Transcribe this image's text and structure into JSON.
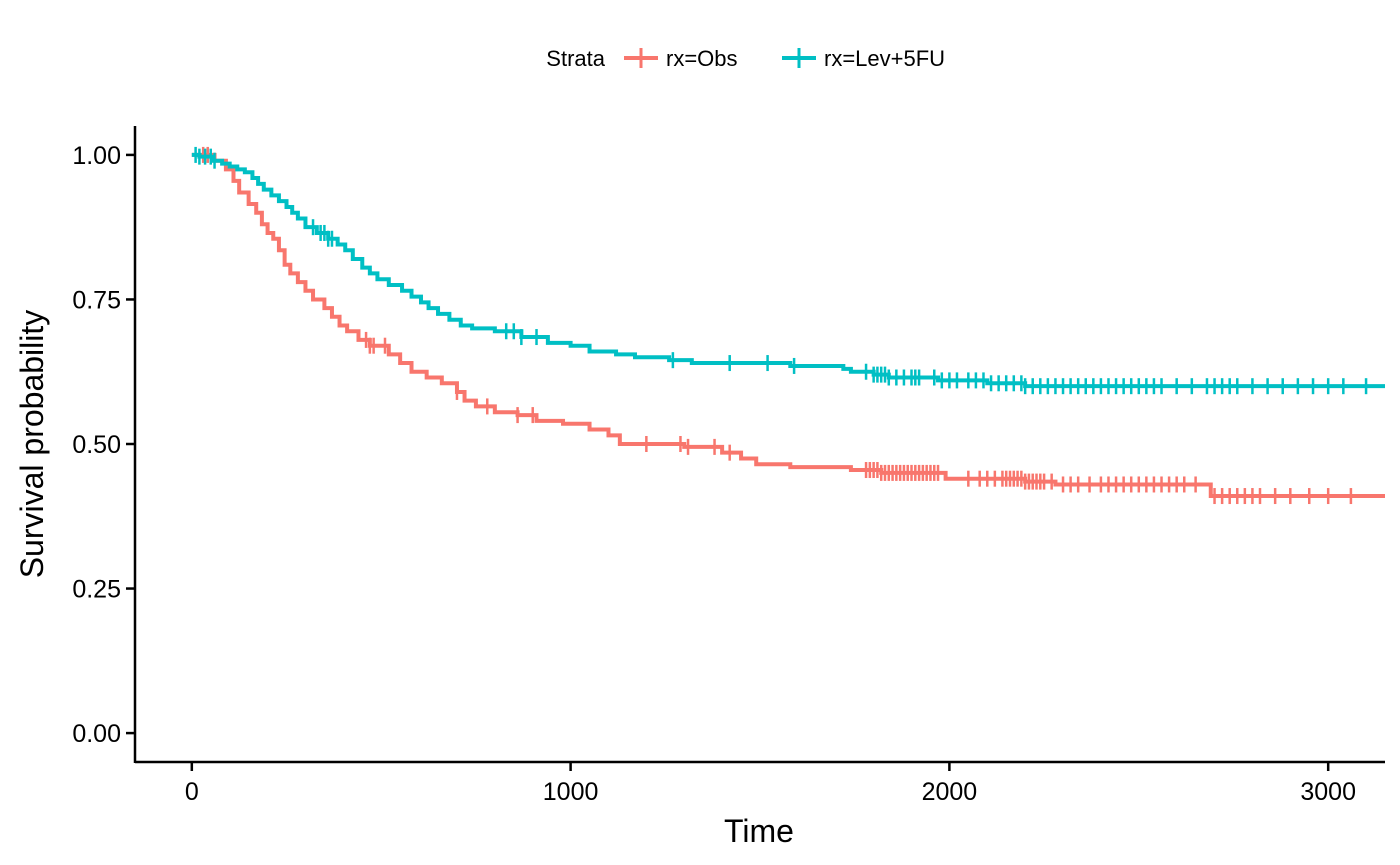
{
  "chart_data": {
    "type": "line",
    "subtype": "kaplan-meier step",
    "xlabel": "Time",
    "ylabel": "Survival probability",
    "xlim": [
      -150,
      3150
    ],
    "ylim": [
      -0.05,
      1.05
    ],
    "x_ticks": [
      0,
      1000,
      2000,
      3000
    ],
    "x_tick_labels": [
      "0",
      "1000",
      "2000",
      "3000"
    ],
    "y_ticks": [
      0,
      0.25,
      0.5,
      0.75,
      1.0
    ],
    "y_tick_labels": [
      "0.00",
      "0.25",
      "0.50",
      "0.75",
      "1.00"
    ],
    "grid": false,
    "legend": {
      "title": "Strata",
      "position": "top"
    },
    "series": [
      {
        "name": "rx=Obs",
        "color": "#f8766d",
        "steps": [
          [
            0,
            1.0
          ],
          [
            60,
            0.99
          ],
          [
            90,
            0.975
          ],
          [
            110,
            0.955
          ],
          [
            125,
            0.935
          ],
          [
            150,
            0.915
          ],
          [
            170,
            0.9
          ],
          [
            185,
            0.88
          ],
          [
            200,
            0.865
          ],
          [
            215,
            0.855
          ],
          [
            230,
            0.835
          ],
          [
            245,
            0.81
          ],
          [
            260,
            0.795
          ],
          [
            280,
            0.78
          ],
          [
            300,
            0.765
          ],
          [
            320,
            0.75
          ],
          [
            350,
            0.735
          ],
          [
            370,
            0.72
          ],
          [
            390,
            0.705
          ],
          [
            410,
            0.695
          ],
          [
            440,
            0.68
          ],
          [
            470,
            0.67
          ],
          [
            520,
            0.655
          ],
          [
            550,
            0.64
          ],
          [
            580,
            0.625
          ],
          [
            620,
            0.615
          ],
          [
            660,
            0.605
          ],
          [
            700,
            0.59
          ],
          [
            720,
            0.575
          ],
          [
            750,
            0.565
          ],
          [
            800,
            0.555
          ],
          [
            860,
            0.55
          ],
          [
            910,
            0.54
          ],
          [
            980,
            0.535
          ],
          [
            1050,
            0.525
          ],
          [
            1100,
            0.515
          ],
          [
            1130,
            0.5
          ],
          [
            1300,
            0.495
          ],
          [
            1400,
            0.485
          ],
          [
            1450,
            0.475
          ],
          [
            1490,
            0.465
          ],
          [
            1580,
            0.46
          ],
          [
            1740,
            0.455
          ],
          [
            1820,
            0.45
          ],
          [
            1990,
            0.44
          ],
          [
            2200,
            0.435
          ],
          [
            2280,
            0.43
          ],
          [
            2690,
            0.41
          ],
          [
            3150,
            0.41
          ]
        ],
        "censored": [
          30,
          42,
          460,
          470,
          480,
          510,
          700,
          780,
          860,
          900,
          1200,
          1290,
          1310,
          1380,
          1420,
          1780,
          1790,
          1800,
          1810,
          1820,
          1830,
          1840,
          1850,
          1860,
          1870,
          1880,
          1890,
          1900,
          1910,
          1920,
          1930,
          1940,
          1950,
          1960,
          1970,
          2050,
          2080,
          2100,
          2120,
          2140,
          2150,
          2160,
          2170,
          2180,
          2190,
          2200,
          2210,
          2220,
          2230,
          2240,
          2250,
          2270,
          2300,
          2320,
          2340,
          2370,
          2400,
          2420,
          2440,
          2460,
          2480,
          2500,
          2520,
          2540,
          2560,
          2580,
          2600,
          2620,
          2650,
          2700,
          2720,
          2740,
          2760,
          2780,
          2800,
          2820,
          2860,
          2900,
          2950,
          3000,
          3060
        ]
      },
      {
        "name": "rx=Lev+5FU",
        "color": "#00bfc4",
        "steps": [
          [
            0,
            1.0
          ],
          [
            20,
            0.997
          ],
          [
            55,
            0.99
          ],
          [
            80,
            0.985
          ],
          [
            100,
            0.98
          ],
          [
            120,
            0.975
          ],
          [
            140,
            0.97
          ],
          [
            160,
            0.96
          ],
          [
            175,
            0.95
          ],
          [
            190,
            0.94
          ],
          [
            210,
            0.93
          ],
          [
            230,
            0.92
          ],
          [
            250,
            0.91
          ],
          [
            265,
            0.9
          ],
          [
            280,
            0.89
          ],
          [
            300,
            0.875
          ],
          [
            330,
            0.865
          ],
          [
            360,
            0.855
          ],
          [
            385,
            0.845
          ],
          [
            405,
            0.835
          ],
          [
            425,
            0.82
          ],
          [
            450,
            0.805
          ],
          [
            470,
            0.795
          ],
          [
            490,
            0.785
          ],
          [
            520,
            0.775
          ],
          [
            555,
            0.765
          ],
          [
            580,
            0.755
          ],
          [
            605,
            0.745
          ],
          [
            625,
            0.735
          ],
          [
            650,
            0.725
          ],
          [
            680,
            0.715
          ],
          [
            710,
            0.705
          ],
          [
            740,
            0.7
          ],
          [
            800,
            0.695
          ],
          [
            870,
            0.685
          ],
          [
            940,
            0.675
          ],
          [
            1000,
            0.67
          ],
          [
            1050,
            0.66
          ],
          [
            1120,
            0.655
          ],
          [
            1170,
            0.65
          ],
          [
            1260,
            0.645
          ],
          [
            1320,
            0.64
          ],
          [
            1580,
            0.635
          ],
          [
            1720,
            0.63
          ],
          [
            1740,
            0.625
          ],
          [
            1800,
            0.62
          ],
          [
            1840,
            0.615
          ],
          [
            1970,
            0.61
          ],
          [
            2100,
            0.605
          ],
          [
            2200,
            0.6
          ],
          [
            3150,
            0.6
          ]
        ],
        "censored": [
          10,
          20,
          35,
          50,
          60,
          320,
          340,
          350,
          360,
          370,
          830,
          850,
          870,
          910,
          1270,
          1420,
          1520,
          1590,
          1780,
          1800,
          1810,
          1820,
          1830,
          1840,
          1860,
          1880,
          1900,
          1910,
          1920,
          1960,
          1980,
          2000,
          2020,
          2050,
          2070,
          2090,
          2110,
          2130,
          2150,
          2170,
          2190,
          2200,
          2220,
          2240,
          2260,
          2280,
          2300,
          2320,
          2340,
          2360,
          2380,
          2400,
          2420,
          2440,
          2460,
          2480,
          2500,
          2520,
          2540,
          2560,
          2600,
          2640,
          2680,
          2700,
          2720,
          2740,
          2760,
          2800,
          2840,
          2880,
          2920,
          2960,
          3000,
          3040,
          3100
        ]
      }
    ]
  }
}
